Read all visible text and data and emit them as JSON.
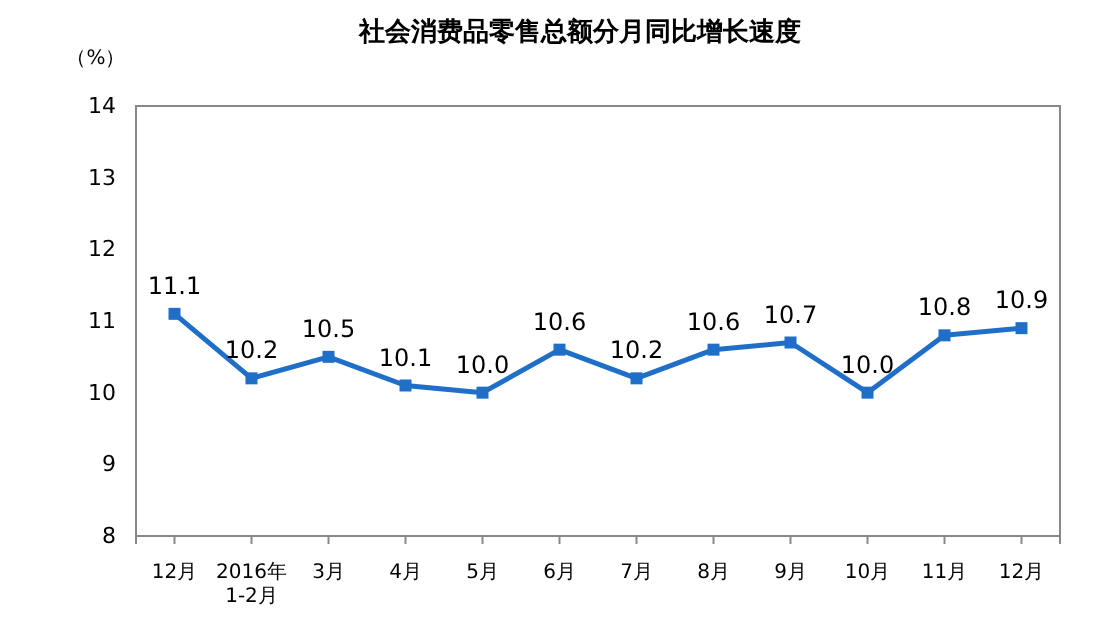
{
  "chart_data": {
    "type": "line",
    "title": "社会消费品零售总额分月同比增长速度",
    "ylabel": "（%）",
    "categories": [
      "12月",
      "2016年\n1-2月",
      "3月",
      "4月",
      "5月",
      "6月",
      "7月",
      "8月",
      "9月",
      "10月",
      "11月",
      "12月"
    ],
    "series": [
      {
        "color": "#1f6fc8",
        "values": [
          11.1,
          10.2,
          10.5,
          10.1,
          10.0,
          10.6,
          10.2,
          10.6,
          10.7,
          10.0,
          10.8,
          10.9
        ],
        "value_labels": [
          "11.1",
          "10.2",
          "10.5",
          "10.1",
          "10.0",
          "10.6",
          "10.2",
          "10.6",
          "10.7",
          "10.0",
          "10.8",
          "10.9"
        ]
      }
    ],
    "ylim": [
      8,
      14
    ],
    "yticks": [
      8,
      9,
      10,
      11,
      12,
      13,
      14
    ],
    "grid": false,
    "marker": "square",
    "line_style": "solid"
  }
}
